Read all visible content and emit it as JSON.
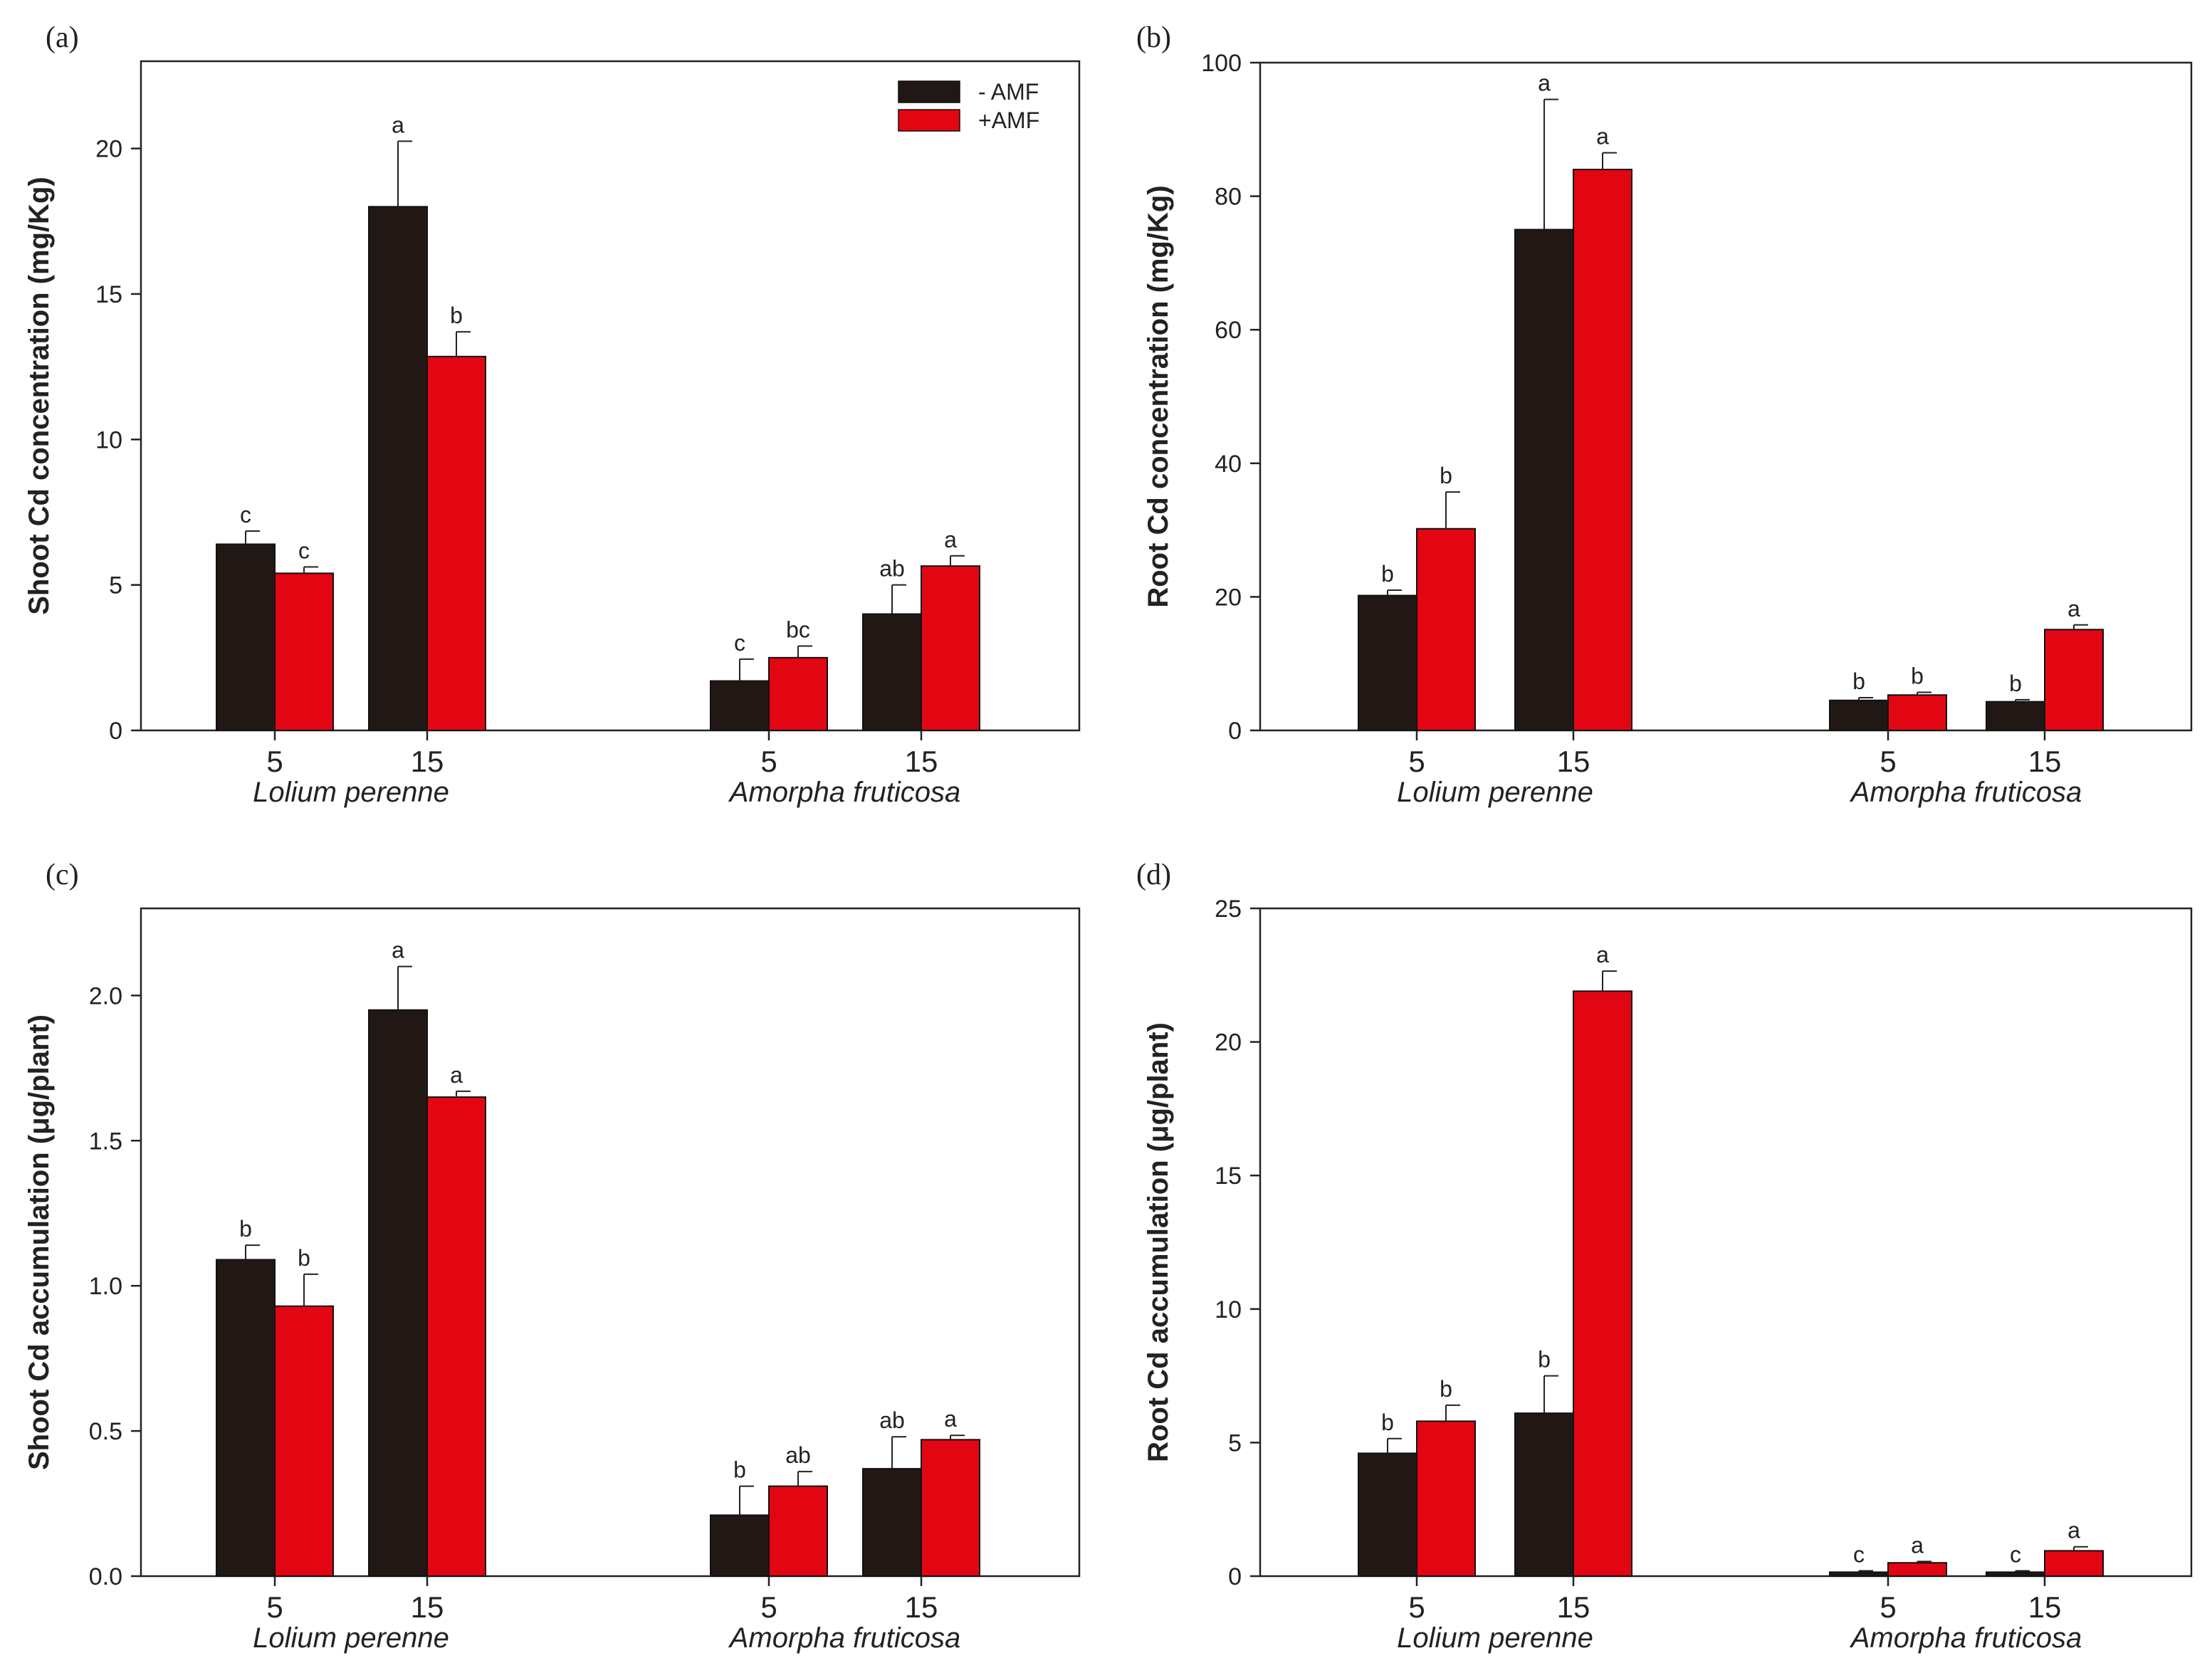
{
  "colors": {
    "minus_amf": "#211815",
    "plus_amf": "#e20613",
    "axis": "#222222"
  },
  "chart_data": [
    {
      "panel": "(a)",
      "type": "bar",
      "ylabel": "Shoot Cd concentration (mg/Kg)",
      "ylim": [
        0,
        23
      ],
      "yticks": [
        0,
        5,
        10,
        15,
        20
      ],
      "ytick_labels": [
        "0",
        "5",
        "10",
        "15",
        "20"
      ],
      "groups": [
        {
          "label": "Lolium perenne",
          "categories": [
            "5",
            "15"
          ]
        },
        {
          "label": "Amorpha fruticosa",
          "categories": [
            "5",
            "15"
          ]
        }
      ],
      "legend": {
        "entries": [
          "- AMF",
          "+AMF"
        ],
        "position": "top-right"
      },
      "series": [
        {
          "name": "- AMF",
          "values": [
            6.4,
            18.0,
            1.7,
            4.0
          ],
          "errors": [
            0.45,
            2.25,
            0.75,
            1.0
          ],
          "letters": [
            "c",
            "a",
            "c",
            "ab"
          ]
        },
        {
          "name": "+AMF",
          "values": [
            5.4,
            12.85,
            2.5,
            5.65
          ],
          "errors": [
            0.22,
            0.85,
            0.4,
            0.35
          ],
          "letters": [
            "c",
            "b",
            "bc",
            "a"
          ]
        }
      ]
    },
    {
      "panel": "(b)",
      "type": "bar",
      "ylabel": "Root Cd concentration (mg/Kg)",
      "ylim": [
        0,
        100
      ],
      "yticks": [
        0,
        20,
        40,
        60,
        80,
        100
      ],
      "ytick_labels": [
        "0",
        "20",
        "40",
        "60",
        "80",
        "100"
      ],
      "groups": [
        {
          "label": "Lolium perenne",
          "categories": [
            "5",
            "15"
          ]
        },
        {
          "label": "Amorpha fruticosa",
          "categories": [
            "5",
            "15"
          ]
        }
      ],
      "series": [
        {
          "name": "- AMF",
          "values": [
            20.2,
            75.0,
            4.5,
            4.3
          ],
          "errors": [
            0.8,
            19.5,
            0.4,
            0.3
          ],
          "letters": [
            "b",
            "a",
            "b",
            "b"
          ]
        },
        {
          "name": "+AMF",
          "values": [
            30.2,
            84.0,
            5.3,
            15.1
          ],
          "errors": [
            5.5,
            2.5,
            0.4,
            0.7
          ],
          "letters": [
            "b",
            "a",
            "b",
            "a"
          ]
        }
      ]
    },
    {
      "panel": "(c)",
      "type": "bar",
      "ylabel": "Shoot Cd accumulation (μg/plant)",
      "ylim": [
        0,
        2.3
      ],
      "yticks": [
        0,
        0.5,
        1.0,
        1.5,
        2.0
      ],
      "ytick_labels": [
        "0.0",
        "0.5",
        "1.0",
        "1.5",
        "2.0"
      ],
      "groups": [
        {
          "label": "Lolium perenne",
          "categories": [
            "5",
            "15"
          ]
        },
        {
          "label": "Amorpha fruticosa",
          "categories": [
            "5",
            "15"
          ]
        }
      ],
      "series": [
        {
          "name": "- AMF",
          "values": [
            1.09,
            1.95,
            0.21,
            0.37
          ],
          "errors": [
            0.05,
            0.15,
            0.1,
            0.11
          ],
          "letters": [
            "b",
            "a",
            "b",
            "ab"
          ]
        },
        {
          "name": "+AMF",
          "values": [
            0.93,
            1.65,
            0.31,
            0.47
          ],
          "errors": [
            0.11,
            0.02,
            0.05,
            0.015
          ],
          "letters": [
            "b",
            "a",
            "ab",
            "a"
          ]
        }
      ]
    },
    {
      "panel": "(d)",
      "type": "bar",
      "ylabel": "Root Cd accumulation (μg/plant)",
      "ylim": [
        0,
        25
      ],
      "yticks": [
        0,
        5,
        10,
        15,
        20,
        25
      ],
      "ytick_labels": [
        "0",
        "5",
        "10",
        "15",
        "20",
        "25"
      ],
      "groups": [
        {
          "label": "Lolium perenne",
          "categories": [
            "5",
            "15"
          ]
        },
        {
          "label": "Amorpha fruticosa",
          "categories": [
            "5",
            "15"
          ]
        }
      ],
      "series": [
        {
          "name": "- AMF",
          "values": [
            4.6,
            6.1,
            0.15,
            0.15
          ],
          "errors": [
            0.55,
            1.4,
            0.05,
            0.05
          ],
          "letters": [
            "b",
            "b",
            "c",
            "c"
          ]
        },
        {
          "name": "+AMF",
          "values": [
            5.8,
            21.9,
            0.5,
            0.95
          ],
          "errors": [
            0.6,
            0.75,
            0.05,
            0.15
          ],
          "letters": [
            "b",
            "a",
            "a",
            "a"
          ]
        }
      ]
    }
  ]
}
